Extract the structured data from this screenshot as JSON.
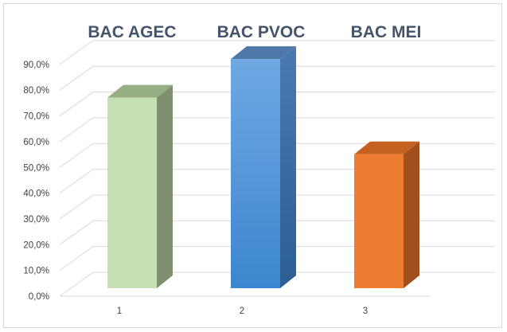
{
  "chart_data": {
    "type": "bar",
    "style": "3d-column",
    "categories": [
      "1",
      "2",
      "3"
    ],
    "values": [
      0.74,
      0.89,
      0.52
    ],
    "bar_titles": [
      "BAC AGEC",
      "BAC PVOC",
      "BAC MEI"
    ],
    "ylim": [
      0,
      0.9
    ],
    "yticks": [
      "0,0%",
      "10,0%",
      "20,0%",
      "30,0%",
      "40,0%",
      "50,0%",
      "60,0%",
      "70,0%",
      "80,0%",
      "90,0%"
    ],
    "grid": true,
    "legend": "none",
    "colors": {
      "front": [
        "#c5e0b4",
        "#5b9bd5",
        "#ed7d31"
      ],
      "side": [
        "#7f8f6f",
        "#2f5b8a",
        "#a04f1d"
      ],
      "top": [
        "#97ad83",
        "#4f78a9",
        "#c4611f"
      ]
    },
    "gradient_bar_index": 1
  }
}
